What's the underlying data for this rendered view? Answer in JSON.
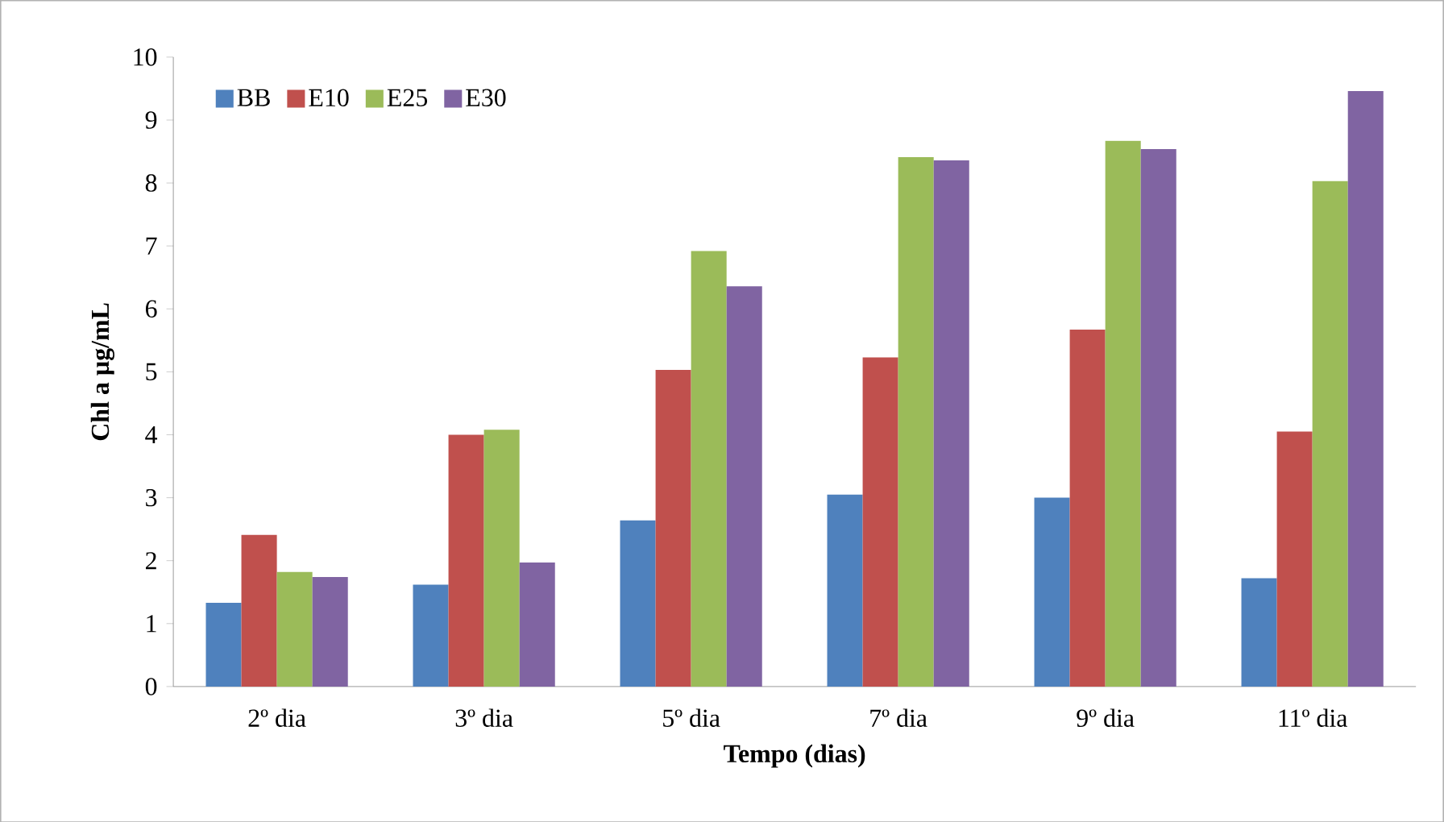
{
  "chart_data": {
    "type": "bar",
    "xlabel": "Tempo (dias)",
    "ylabel": "Chl a µg/mL",
    "categories": [
      "2º dia",
      "3º dia",
      "5º dia",
      "7º dia",
      "9º dia",
      "11º dia"
    ],
    "series": [
      {
        "name": "BB",
        "color": "#4f81bd",
        "values": [
          1.33,
          1.62,
          2.64,
          3.05,
          3.0,
          1.72
        ]
      },
      {
        "name": "E10",
        "color": "#c0504d",
        "values": [
          2.41,
          4.0,
          5.03,
          5.23,
          5.67,
          4.05
        ]
      },
      {
        "name": "E25",
        "color": "#9bbb59",
        "values": [
          1.82,
          4.08,
          6.92,
          8.41,
          8.67,
          8.03
        ]
      },
      {
        "name": "E30",
        "color": "#8064a2",
        "values": [
          1.74,
          1.97,
          6.36,
          8.36,
          8.54,
          9.46
        ]
      }
    ],
    "ylim": [
      0,
      10
    ],
    "yticks": [
      0,
      1,
      2,
      3,
      4,
      5,
      6,
      7,
      8,
      9,
      10
    ],
    "legend": "top left"
  }
}
